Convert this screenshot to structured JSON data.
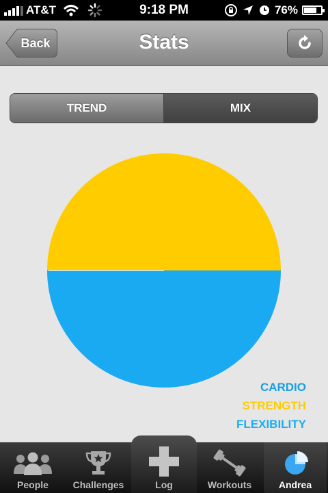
{
  "status_bar": {
    "carrier": "AT&T",
    "time": "9:18 PM",
    "battery_percent": "76%",
    "battery_level": 0.76,
    "icons": [
      "signal-icon",
      "wifi-icon",
      "activity-spinner-icon",
      "rotation-lock-icon",
      "location-icon",
      "alarm-icon",
      "battery-icon"
    ]
  },
  "nav": {
    "title": "Stats",
    "back_label": "Back",
    "refresh_icon": "refresh-icon"
  },
  "segments": [
    {
      "label": "TREND",
      "selected": false
    },
    {
      "label": "MIX",
      "selected": true
    }
  ],
  "chart_data": {
    "type": "pie",
    "slices": [
      {
        "name": "CARDIO",
        "value": 50,
        "color": "#19aaf2"
      },
      {
        "name": "STRENGTH",
        "value": 50,
        "color": "#ffcc00"
      },
      {
        "name": "FLEXIBILITY",
        "value": 0,
        "color": "#19aaf2"
      }
    ],
    "legend_position": "bottom-right"
  },
  "legend": [
    {
      "label": "CARDIO",
      "color": "#1a9fe0"
    },
    {
      "label": "STRENGTH",
      "color": "#ffcc00"
    },
    {
      "label": "FLEXIBILITY",
      "color": "#1aaef0"
    }
  ],
  "tabs": [
    {
      "label": "People",
      "icon": "people-icon",
      "active": false
    },
    {
      "label": "Challenges",
      "icon": "trophy-icon",
      "active": false
    },
    {
      "label": "Log",
      "icon": "plus-icon",
      "active": false
    },
    {
      "label": "Workouts",
      "icon": "dumbbell-icon",
      "active": false
    },
    {
      "label": "Andrea",
      "icon": "pie-chart-icon",
      "active": true
    }
  ]
}
